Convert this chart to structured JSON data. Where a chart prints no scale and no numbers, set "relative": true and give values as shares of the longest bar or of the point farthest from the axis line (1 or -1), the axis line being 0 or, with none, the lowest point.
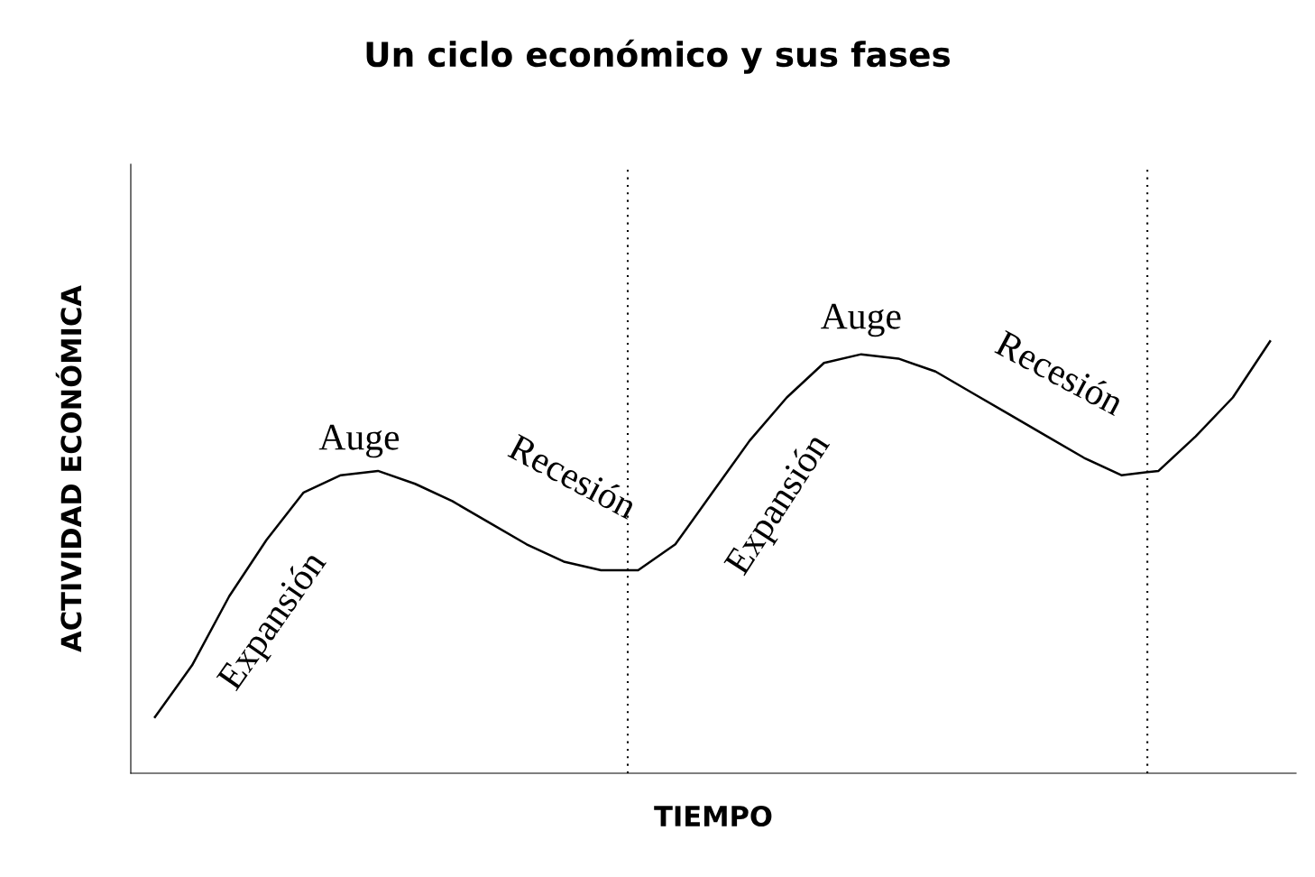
{
  "chart_data": {
    "type": "line",
    "title": "Un ciclo económico y sus fases",
    "xlabel": "TIEMPO",
    "ylabel": "ACTIVIDAD ECONÓMICA",
    "relative": true,
    "categories": [
      null,
      null,
      null,
      null,
      null,
      null,
      null,
      null,
      null,
      null,
      null,
      null,
      null,
      null,
      null,
      null,
      null,
      null,
      null,
      null,
      null,
      null,
      null,
      null,
      null,
      null,
      null,
      null,
      null,
      null,
      null
    ],
    "series": [
      {
        "color": "#000000",
        "values": [
          0.13,
          0.25,
          0.41,
          0.54,
          0.65,
          0.69,
          0.7,
          0.67,
          0.63,
          0.58,
          0.53,
          0.49,
          0.47,
          0.47,
          0.53,
          0.65,
          0.77,
          0.87,
          0.95,
          0.97,
          0.96,
          0.93,
          0.88,
          0.83,
          0.78,
          0.73,
          0.69,
          0.7,
          0.78,
          0.87,
          1.0
        ]
      }
    ],
    "annotations": [
      "Expansión",
      "Auge",
      "Recesión",
      "Expansión",
      "Auge",
      "Recesión"
    ],
    "grid": false,
    "legend": false,
    "marker": "none",
    "line_style": "solid"
  }
}
